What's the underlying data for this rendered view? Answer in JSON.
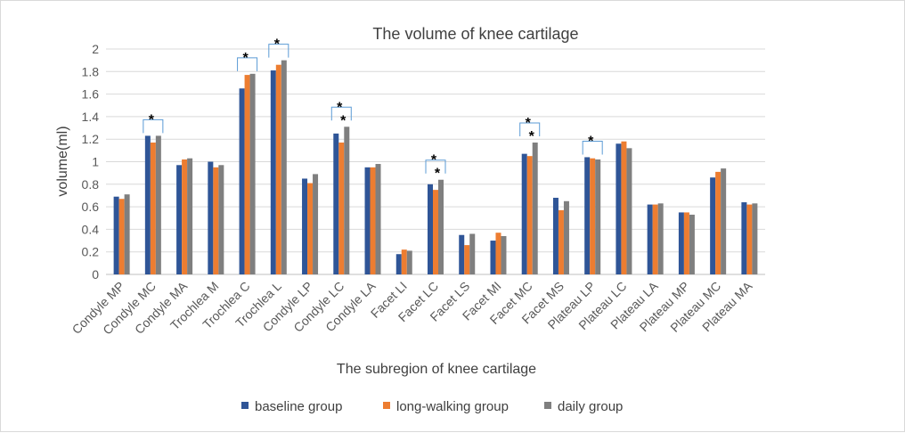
{
  "chart_data": {
    "type": "bar",
    "title": "The volume of knee cartilage",
    "xlabel": "The subregion of knee cartilage",
    "ylabel": "volume(ml)",
    "ylim": [
      0,
      2
    ],
    "yticks": [
      "0",
      "0.2",
      "0.4",
      "0.6",
      "0.8",
      "1",
      "1.2",
      "1.4",
      "1.6",
      "1.8",
      "2"
    ],
    "grid": true,
    "legend_position": "bottom",
    "significance_marker": "*",
    "categories": [
      "Condyle MP",
      "Condyle MC",
      "Condyle MA",
      "Trochlea M",
      "Trochlea C",
      "Trochlea L",
      "Condyle LP",
      "Condyle LC",
      "Condyle LA",
      "Facet LI",
      "Facet LC",
      "Facet LS",
      "Facet MI",
      "Facet MC",
      "Facet MS",
      "Plateau LP",
      "Plateau LC",
      "Plateau LA",
      "Plateau MP",
      "Plateau MC",
      "Plateau MA"
    ],
    "series": [
      {
        "name": "baseline group",
        "color": "#2f5597",
        "values": [
          0.69,
          1.23,
          0.97,
          1.0,
          1.65,
          1.81,
          0.85,
          1.25,
          0.95,
          0.18,
          0.8,
          0.35,
          0.3,
          1.07,
          0.68,
          1.04,
          1.16,
          0.62,
          0.55,
          0.86,
          0.64
        ]
      },
      {
        "name": "long-walking group",
        "color": "#ed7d31",
        "values": [
          0.67,
          1.17,
          1.02,
          0.95,
          1.77,
          1.86,
          0.81,
          1.17,
          0.95,
          0.22,
          0.75,
          0.26,
          0.37,
          1.05,
          0.57,
          1.03,
          1.18,
          0.62,
          0.55,
          0.91,
          0.62
        ]
      },
      {
        "name": "daily group",
        "color": "#7f7f7f",
        "values": [
          0.71,
          1.23,
          1.03,
          0.97,
          1.78,
          1.9,
          0.89,
          1.31,
          0.98,
          0.21,
          0.84,
          0.36,
          0.34,
          1.17,
          0.65,
          1.02,
          1.12,
          0.63,
          0.53,
          0.94,
          0.63
        ]
      }
    ],
    "significance": [
      {
        "category": "Condyle MC",
        "stars": 1
      },
      {
        "category": "Trochlea C",
        "stars": 1
      },
      {
        "category": "Trochlea L",
        "stars": 1
      },
      {
        "category": "Condyle LC",
        "stars": 2
      },
      {
        "category": "Facet LC",
        "stars": 2
      },
      {
        "category": "Facet MC",
        "stars": 2
      },
      {
        "category": "Plateau LP",
        "stars": 1
      }
    ]
  }
}
